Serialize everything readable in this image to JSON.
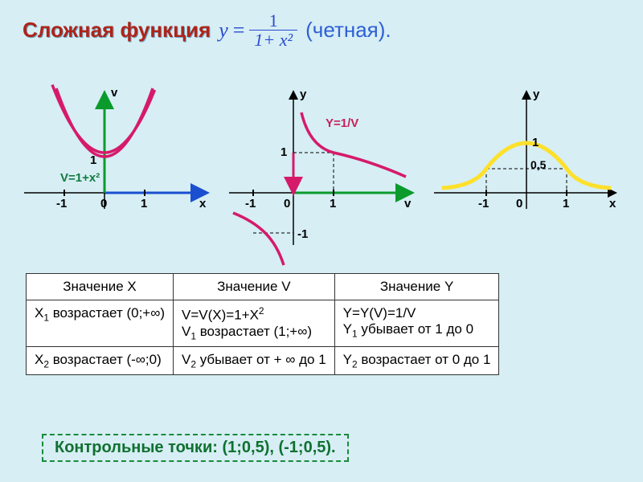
{
  "colors": {
    "background": "#d6eef4",
    "title_red": "#b02318",
    "title_shadow": "#6aa8c8",
    "formula_blue": "#2a4bd1",
    "paren_blue": "#2e5fd6",
    "axis": "#000000",
    "arrow_green": "#0a9b2c",
    "arrow_blue": "#1a4fd0",
    "arrow_red": "#d61a6b",
    "curve_magenta": "#d61a6b",
    "curve_yellow": "#ffe02a",
    "label_green": "#137a3f",
    "label_red": "#c62059",
    "table_border": "#333333",
    "control_green": "#1a8a3a",
    "control_text": "#107030"
  },
  "title": {
    "main": "Сложная функция",
    "formula_lhs": "y",
    "formula_eq": "=",
    "formula_num": "1",
    "formula_den": "1+ x²",
    "paren": "(четная)."
  },
  "chart1": {
    "yaxis_label": "v",
    "xaxis_label": "x",
    "tick_neg1": "-1",
    "tick_0": "0",
    "tick_1": "1",
    "ytick_1": "1",
    "curve_label": "V=1+x²",
    "curve_color": "#d61a6b",
    "axis_arrows": {
      "y": "#0a9b2c",
      "x": "#1a4fd0"
    }
  },
  "chart2": {
    "yaxis_label": "y",
    "xaxis_label": "v",
    "tick_neg1": "-1",
    "tick_0": "0",
    "tick_1": "1",
    "ytick_1": "1",
    "ytick_neg1": "-1",
    "curve_label": "Y=1/V",
    "curve_color": "#d61a6b",
    "axis_arrows": {
      "y": "#d61a6b",
      "x": "#0a9b2c"
    }
  },
  "chart3": {
    "yaxis_label": "y",
    "xaxis_label": "x",
    "tick_neg1": "-1",
    "tick_0": "0",
    "tick_1": "1",
    "ytick_1": "1",
    "ytick_05": "0,5",
    "curve_color": "#ffe02a",
    "axis_arrows": {
      "y": "#000000",
      "x": "#000000"
    }
  },
  "table": {
    "h1": "Значение X",
    "h2": "Значение V",
    "h3": "Значение Y",
    "r1c1": "X₁ возрастает (0;+∞)",
    "r1c2": "V=V(X)=1+X²\nV₁ возрастает (1;+∞)",
    "r1c3": "Y=Y(V)=1/V\nY₁ убывает от 1 до 0",
    "r2c1": "X₂ возрастает (-∞;0)",
    "r2c2": "V₂ убывает от + ∞ до 1",
    "r2c3": "Y₂ возрастает от 0 до 1"
  },
  "control": "Контрольные точки: (1;0,5), (-1;0,5)."
}
